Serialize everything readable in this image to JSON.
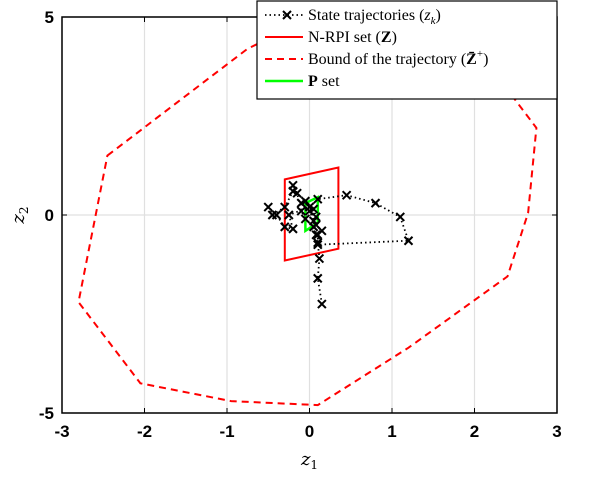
{
  "chart_data": {
    "type": "line",
    "title": "",
    "xlabel": {
      "base": "z",
      "sub": "1"
    },
    "ylabel": {
      "base": "z",
      "sub": "2"
    },
    "xlim": [
      -3,
      3
    ],
    "ylim": [
      -5,
      5
    ],
    "xticks": [
      -3,
      -2,
      -1,
      0,
      1,
      2,
      3
    ],
    "yticks": [
      -5,
      0,
      5
    ],
    "xtick_labels": [
      "-3",
      "-2",
      "-1",
      "0",
      "1",
      "2",
      "3"
    ],
    "ytick_labels": [
      "-5",
      "0",
      "5"
    ],
    "grid": true,
    "legend_position": "top-right",
    "colors": {
      "trajectory": "#000000",
      "nrpi": "#ff0000",
      "bound": "#ff0000",
      "pset": "#00ff00",
      "grid": "#e0e0e0"
    },
    "legend": [
      {
        "key": "trajectory",
        "prefix": "State trajectories (",
        "math": "z",
        "sub": "k",
        "suffix": ")"
      },
      {
        "key": "nrpi",
        "prefix": "N-RPI set (",
        "bold": "Z",
        "suffix": ")"
      },
      {
        "key": "bound",
        "prefix": "Bound of the trajectory (",
        "bold": "Z̄",
        "sup": "+",
        "suffix": ")"
      },
      {
        "key": "pset",
        "prefix": "",
        "bold": "P",
        "suffix": " set"
      }
    ],
    "series": [
      {
        "key": "bound",
        "style": "dashed",
        "closed": true,
        "points": [
          [
            -2.45,
            1.5
          ],
          [
            -0.75,
            4.2
          ],
          [
            0.0,
            4.95
          ],
          [
            0.9,
            4.9
          ],
          [
            2.35,
            3.3
          ],
          [
            2.75,
            2.2
          ],
          [
            2.65,
            0.05
          ],
          [
            2.4,
            -1.55
          ],
          [
            1.2,
            -3.35
          ],
          [
            0.1,
            -4.8
          ],
          [
            -0.95,
            -4.7
          ],
          [
            -2.05,
            -4.25
          ],
          [
            -2.8,
            -2.2
          ]
        ]
      },
      {
        "key": "nrpi",
        "style": "solid",
        "closed": true,
        "points": [
          [
            -0.3,
            0.9
          ],
          [
            0.35,
            1.2
          ],
          [
            0.35,
            -0.85
          ],
          [
            -0.3,
            -1.15
          ]
        ]
      },
      {
        "key": "pset",
        "style": "solid",
        "closed": true,
        "points": [
          [
            -0.05,
            0.3
          ],
          [
            0.1,
            0.45
          ],
          [
            0.1,
            -0.2
          ],
          [
            -0.05,
            -0.4
          ]
        ]
      },
      {
        "key": "trajectory",
        "style": "dotted",
        "marker": "x",
        "closed": false,
        "points": [
          [
            0.15,
            -2.25
          ],
          [
            0.1,
            -1.6
          ],
          [
            0.12,
            -1.1
          ],
          [
            0.1,
            -0.7
          ],
          [
            0.08,
            -0.5
          ],
          [
            0.05,
            -0.15
          ],
          [
            0.0,
            0.1
          ],
          [
            -0.1,
            0.3
          ],
          [
            -0.05,
            0.35
          ],
          [
            0.05,
            0.15
          ],
          [
            0.08,
            -0.05
          ],
          [
            0.05,
            -0.3
          ],
          [
            -0.05,
            -0.1
          ],
          [
            -0.1,
            0.1
          ],
          [
            -0.15,
            0.55
          ],
          [
            -0.2,
            0.75
          ],
          [
            -0.2,
            0.6
          ],
          [
            -0.3,
            0.2
          ],
          [
            -0.45,
            0.0
          ],
          [
            -0.5,
            0.2
          ],
          [
            -0.4,
            0.0
          ],
          [
            -0.3,
            -0.3
          ],
          [
            -0.2,
            -0.35
          ],
          [
            -0.25,
            0.0
          ],
          [
            0.0,
            0.2
          ],
          [
            0.1,
            0.4
          ],
          [
            0.45,
            0.5
          ],
          [
            0.8,
            0.3
          ],
          [
            1.1,
            -0.05
          ],
          [
            1.2,
            -0.65
          ],
          [
            0.1,
            -0.75
          ],
          [
            0.1,
            -0.5
          ],
          [
            0.15,
            -0.4
          ],
          [
            0.08,
            -0.25
          ]
        ]
      }
    ]
  }
}
